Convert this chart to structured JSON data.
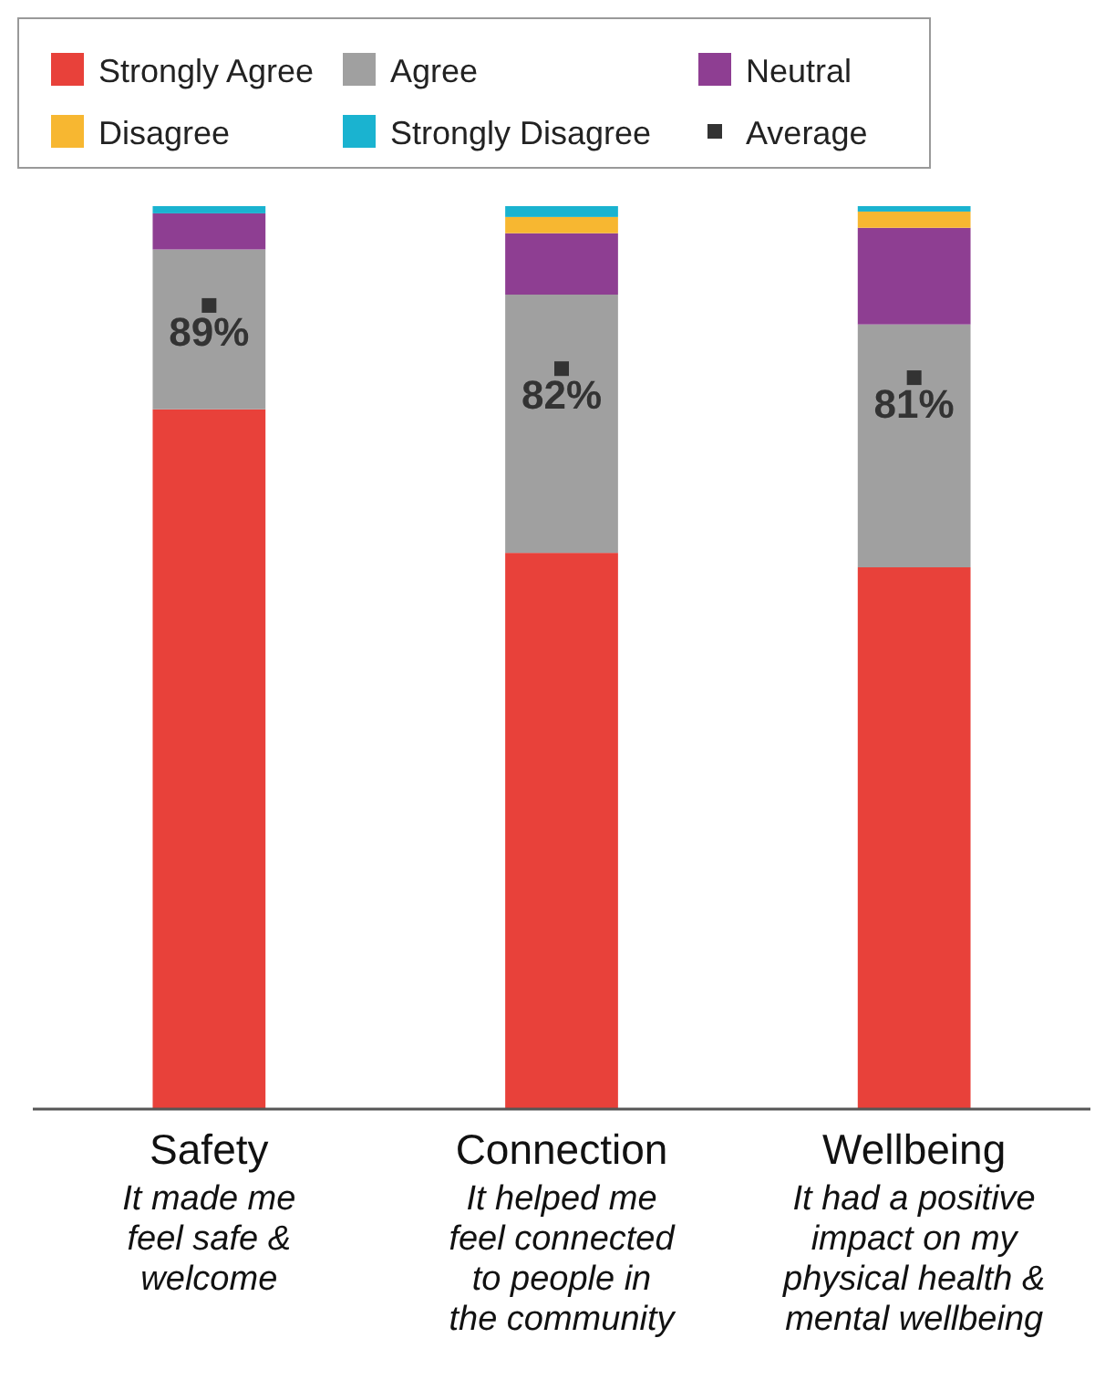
{
  "chart_data": {
    "type": "bar",
    "stacked": true,
    "categories": [
      "Safety\nIt made me\nfeel safe &\nwelcome",
      "Connection\nIt helped me\nfeel connected\nto people in\nthe community",
      "Wellbeing\nIt had a positive\nimpact on my\nphysical health &\nmental wellbeing"
    ],
    "series": [
      {
        "name": "Strongly Agree",
        "color": "#e8413a",
        "values": [
          77.5,
          61.6,
          60.0
        ]
      },
      {
        "name": "Agree",
        "color": "#a0a0a0",
        "values": [
          17.7,
          28.6,
          26.9
        ]
      },
      {
        "name": "Neutral",
        "color": "#8e3e92",
        "values": [
          4.0,
          6.8,
          10.7
        ]
      },
      {
        "name": "Disagree",
        "color": "#f7b731",
        "values": [
          0,
          1.8,
          1.8
        ]
      },
      {
        "name": "Strongly Disagree",
        "color": "#1ab3d0",
        "values": [
          0.8,
          1.2,
          0.6
        ]
      },
      {
        "name": "Average",
        "type": "scatter",
        "color": "#333333",
        "marker": "square",
        "values": [
          89,
          82,
          81
        ],
        "value_labels": [
          "89%",
          "82%",
          "81%"
        ]
      }
    ],
    "ylim": [
      0,
      100
    ],
    "tick_labels": "x",
    "legend": "top"
  }
}
